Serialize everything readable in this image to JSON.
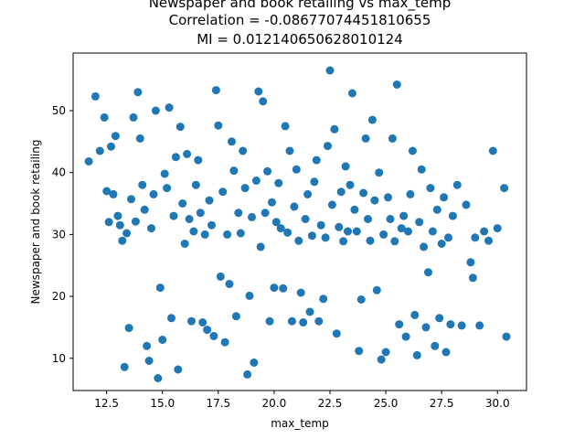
{
  "chart_data": {
    "type": "scatter",
    "title_lines": [
      "Newspaper and book retailing vs max_temp",
      "Correlation = -0.08677074451810655",
      "MI = 0.012140650628010124"
    ],
    "xlabel": "max_temp",
    "ylabel": "Newspaper and book retailing",
    "xlim": [
      11.0,
      31.3
    ],
    "ylim": [
      4.8,
      59.3
    ],
    "xticks": [
      12.5,
      15.0,
      17.5,
      20.0,
      22.5,
      25.0,
      27.5,
      30.0
    ],
    "xtick_labels": [
      "12.5",
      "15.0",
      "17.5",
      "20.0",
      "22.5",
      "25.0",
      "27.5",
      "30.0"
    ],
    "yticks": [
      10,
      20,
      30,
      40,
      50
    ],
    "ytick_labels": [
      "10",
      "20",
      "30",
      "40",
      "50"
    ],
    "grid": false,
    "marker_color": "#1f77b4",
    "points": [
      [
        11.7,
        41.8
      ],
      [
        12.0,
        52.3
      ],
      [
        12.2,
        43.5
      ],
      [
        12.4,
        48.9
      ],
      [
        12.5,
        37.0
      ],
      [
        12.6,
        32.0
      ],
      [
        12.7,
        44.2
      ],
      [
        12.8,
        36.5
      ],
      [
        12.9,
        45.9
      ],
      [
        13.0,
        33.0
      ],
      [
        13.1,
        31.5
      ],
      [
        13.2,
        29.0
      ],
      [
        13.3,
        8.6
      ],
      [
        13.4,
        30.2
      ],
      [
        13.5,
        14.9
      ],
      [
        13.6,
        35.7
      ],
      [
        13.7,
        48.9
      ],
      [
        13.8,
        32.1
      ],
      [
        13.9,
        53.0
      ],
      [
        14.0,
        45.5
      ],
      [
        14.1,
        38.0
      ],
      [
        14.2,
        34.0
      ],
      [
        14.3,
        12.0
      ],
      [
        14.4,
        9.6
      ],
      [
        14.5,
        31.0
      ],
      [
        14.6,
        36.5
      ],
      [
        14.7,
        50.0
      ],
      [
        14.8,
        6.8
      ],
      [
        14.9,
        21.4
      ],
      [
        15.0,
        13.0
      ],
      [
        15.1,
        39.8
      ],
      [
        15.2,
        37.5
      ],
      [
        15.3,
        50.5
      ],
      [
        15.4,
        16.5
      ],
      [
        15.5,
        33.0
      ],
      [
        15.6,
        42.5
      ],
      [
        15.7,
        8.2
      ],
      [
        15.8,
        47.4
      ],
      [
        15.9,
        35.0
      ],
      [
        16.0,
        28.5
      ],
      [
        16.1,
        43.0
      ],
      [
        16.2,
        32.5
      ],
      [
        16.3,
        16.0
      ],
      [
        16.4,
        30.5
      ],
      [
        16.5,
        38.0
      ],
      [
        16.6,
        42.0
      ],
      [
        16.7,
        33.5
      ],
      [
        16.8,
        15.8
      ],
      [
        16.9,
        30.0
      ],
      [
        17.0,
        14.6
      ],
      [
        17.1,
        35.5
      ],
      [
        17.2,
        31.5
      ],
      [
        17.3,
        13.6
      ],
      [
        17.4,
        53.3
      ],
      [
        17.5,
        47.6
      ],
      [
        17.6,
        23.2
      ],
      [
        17.7,
        36.9
      ],
      [
        17.8,
        12.6
      ],
      [
        17.9,
        30.0
      ],
      [
        18.0,
        22.0
      ],
      [
        18.1,
        45.0
      ],
      [
        18.2,
        40.3
      ],
      [
        18.3,
        16.8
      ],
      [
        18.4,
        33.5
      ],
      [
        18.5,
        30.2
      ],
      [
        18.6,
        43.5
      ],
      [
        18.7,
        37.5
      ],
      [
        18.8,
        7.4
      ],
      [
        18.9,
        20.1
      ],
      [
        19.0,
        32.8
      ],
      [
        19.1,
        9.3
      ],
      [
        19.2,
        38.7
      ],
      [
        19.3,
        53.1
      ],
      [
        19.4,
        28.0
      ],
      [
        19.5,
        51.5
      ],
      [
        19.6,
        33.5
      ],
      [
        19.7,
        40.2
      ],
      [
        19.8,
        16.0
      ],
      [
        19.9,
        35.2
      ],
      [
        20.0,
        21.4
      ],
      [
        20.1,
        32.0
      ],
      [
        20.2,
        38.3
      ],
      [
        20.3,
        31.0
      ],
      [
        20.4,
        21.3
      ],
      [
        20.5,
        47.5
      ],
      [
        20.6,
        30.3
      ],
      [
        20.7,
        43.5
      ],
      [
        20.8,
        16.0
      ],
      [
        20.9,
        34.5
      ],
      [
        21.0,
        40.5
      ],
      [
        21.1,
        29.0
      ],
      [
        21.2,
        20.6
      ],
      [
        21.3,
        15.8
      ],
      [
        21.4,
        32.5
      ],
      [
        21.5,
        36.5
      ],
      [
        21.6,
        17.5
      ],
      [
        21.7,
        29.8
      ],
      [
        21.8,
        38.5
      ],
      [
        21.9,
        42.0
      ],
      [
        22.0,
        16.0
      ],
      [
        22.1,
        31.5
      ],
      [
        22.2,
        19.6
      ],
      [
        22.3,
        29.5
      ],
      [
        22.4,
        44.3
      ],
      [
        22.5,
        56.5
      ],
      [
        22.6,
        34.8
      ],
      [
        22.7,
        47.0
      ],
      [
        22.8,
        14.0
      ],
      [
        22.9,
        31.2
      ],
      [
        23.0,
        36.9
      ],
      [
        23.1,
        28.9
      ],
      [
        23.2,
        41.0
      ],
      [
        23.3,
        30.5
      ],
      [
        23.4,
        38.0
      ],
      [
        23.5,
        52.8
      ],
      [
        23.6,
        34.0
      ],
      [
        23.7,
        30.5
      ],
      [
        23.8,
        11.2
      ],
      [
        23.9,
        19.5
      ],
      [
        24.0,
        36.7
      ],
      [
        24.1,
        45.5
      ],
      [
        24.2,
        32.5
      ],
      [
        24.3,
        29.0
      ],
      [
        24.4,
        48.5
      ],
      [
        24.5,
        35.5
      ],
      [
        24.6,
        21.0
      ],
      [
        24.7,
        40.0
      ],
      [
        24.8,
        9.8
      ],
      [
        24.9,
        30.0
      ],
      [
        25.0,
        11.0
      ],
      [
        25.1,
        36.0
      ],
      [
        25.2,
        32.5
      ],
      [
        25.3,
        45.5
      ],
      [
        25.4,
        28.9
      ],
      [
        25.5,
        54.2
      ],
      [
        25.6,
        15.5
      ],
      [
        25.7,
        31.0
      ],
      [
        25.8,
        33.0
      ],
      [
        25.9,
        13.5
      ],
      [
        26.0,
        30.5
      ],
      [
        26.1,
        36.5
      ],
      [
        26.2,
        43.5
      ],
      [
        26.3,
        17.0
      ],
      [
        26.4,
        10.5
      ],
      [
        26.5,
        32.0
      ],
      [
        26.6,
        40.5
      ],
      [
        26.7,
        28.0
      ],
      [
        26.8,
        15.0
      ],
      [
        26.9,
        23.9
      ],
      [
        27.0,
        37.5
      ],
      [
        27.1,
        30.5
      ],
      [
        27.2,
        12.0
      ],
      [
        27.3,
        34.0
      ],
      [
        27.4,
        16.5
      ],
      [
        27.5,
        28.5
      ],
      [
        27.6,
        36.0
      ],
      [
        27.7,
        11.0
      ],
      [
        27.8,
        29.5
      ],
      [
        27.9,
        15.5
      ],
      [
        28.0,
        33.0
      ],
      [
        28.2,
        38.0
      ],
      [
        28.4,
        15.3
      ],
      [
        28.6,
        34.8
      ],
      [
        28.8,
        25.5
      ],
      [
        28.9,
        23.0
      ],
      [
        29.0,
        29.5
      ],
      [
        29.2,
        15.3
      ],
      [
        29.4,
        30.5
      ],
      [
        29.6,
        29.0
      ],
      [
        29.8,
        43.5
      ],
      [
        30.0,
        31.0
      ],
      [
        30.3,
        37.5
      ],
      [
        30.4,
        13.5
      ]
    ]
  }
}
